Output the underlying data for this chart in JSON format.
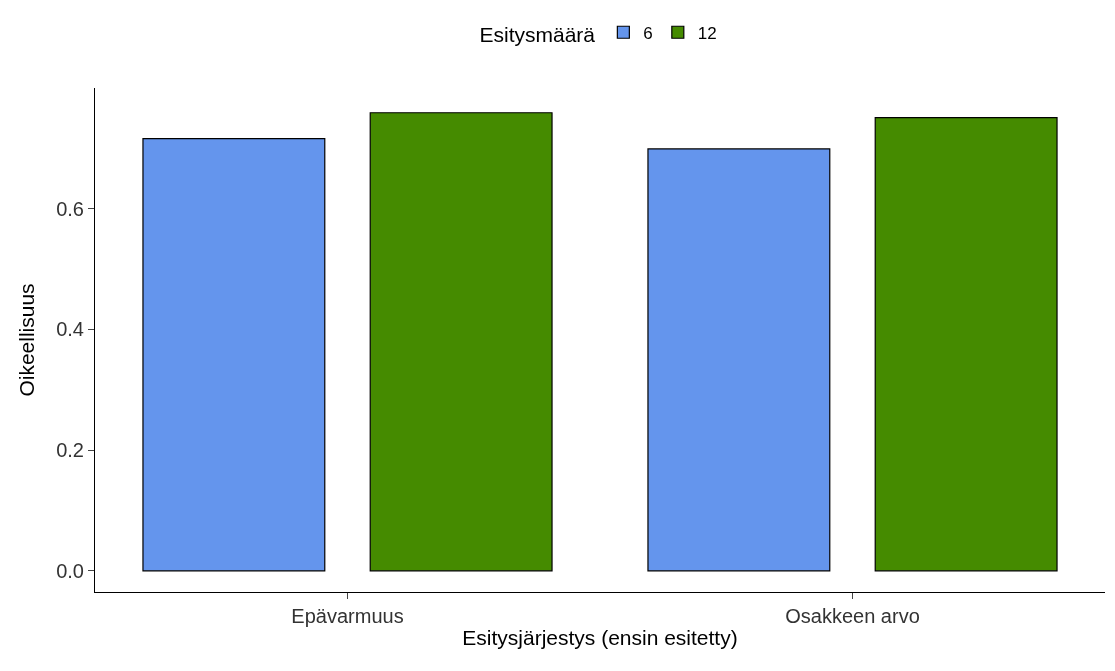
{
  "chart_data": {
    "type": "bar",
    "xlabel": "Esitysjärjestys (ensin esitetty)",
    "ylabel": "Oikeellisuus",
    "legend_title": "Esitysmäärä",
    "categories": [
      "Epävarmuus",
      "Osakkeen arvo"
    ],
    "series": [
      {
        "name": "6",
        "color": "#6495ed",
        "values": [
          0.716,
          0.699
        ]
      },
      {
        "name": "12",
        "color": "#458b00",
        "values": [
          0.759,
          0.751
        ]
      }
    ],
    "ylim": [
      -0.035,
      0.8
    ],
    "yticks": [
      {
        "value": 0,
        "label": "0.0"
      },
      {
        "value": 0.2,
        "label": "0.2"
      },
      {
        "value": 0.4,
        "label": "0.4"
      },
      {
        "value": 0.6,
        "label": "0.6"
      }
    ],
    "legend": "top"
  }
}
